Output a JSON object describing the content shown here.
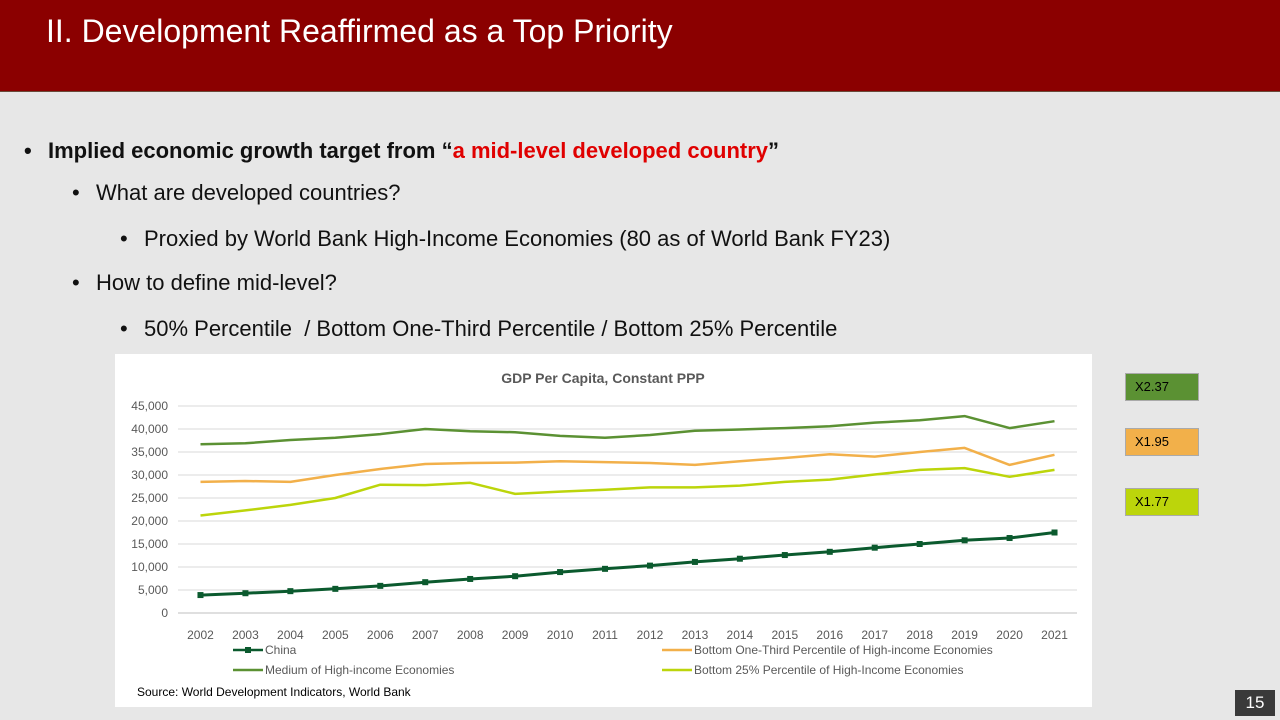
{
  "slide": {
    "title": "II. Development Reaffirmed as a Top Priority",
    "page_number": "15",
    "bullets": {
      "b1_prefix": "Implied economic growth target from “",
      "b1_highlight": "a mid-level developed country",
      "b1_suffix": "”",
      "b2": "What are developed countries?",
      "b3": "Proxied by World Bank High-Income Economies (80 as of World Bank FY23)",
      "b4": "How to define mid-level?",
      "b5": "50% Percentile  / Bottom One-Third Percentile / Bottom 25% Percentile"
    },
    "source": "Source: World Development Indicators, World Bank",
    "multipliers": [
      {
        "label": "X2.37",
        "color": "#5b9133"
      },
      {
        "label": "X1.95",
        "color": "#f2b04a"
      },
      {
        "label": "X1.77",
        "color": "#bcd50b"
      }
    ]
  },
  "chart_data": {
    "type": "line",
    "title": "GDP Per Capita, Constant PPP",
    "x": [
      "2002",
      "2003",
      "2004",
      "2005",
      "2006",
      "2007",
      "2008",
      "2009",
      "2010",
      "2011",
      "2012",
      "2013",
      "2014",
      "2015",
      "2016",
      "2017",
      "2018",
      "2019",
      "2020",
      "2021"
    ],
    "ylim": [
      0,
      45000
    ],
    "yticks": [
      0,
      5000,
      10000,
      15000,
      20000,
      25000,
      30000,
      35000,
      40000,
      45000
    ],
    "ytick_labels": [
      "0",
      "5,000",
      "10,000",
      "15,000",
      "20,000",
      "25,000",
      "30,000",
      "35,000",
      "40,000",
      "45,000"
    ],
    "grid": true,
    "legend_position": "bottom",
    "series": [
      {
        "name": "China",
        "color": "#0b5a2e",
        "markers": true,
        "values": [
          3900,
          4300,
          4750,
          5250,
          5900,
          6700,
          7400,
          8000,
          8900,
          9600,
          10300,
          11100,
          11800,
          12600,
          13300,
          14200,
          15000,
          15800,
          16300,
          17500
        ]
      },
      {
        "name": "Bottom One-Third Percentile of High-income Economies",
        "color": "#f2b04a",
        "markers": false,
        "values": [
          28500,
          28700,
          28500,
          30000,
          31300,
          32400,
          32600,
          32700,
          33000,
          32800,
          32600,
          32200,
          33000,
          33700,
          34500,
          34000,
          35000,
          35900,
          32200,
          34400
        ]
      },
      {
        "name": "Medium of High-income Economies",
        "color": "#5b9133",
        "markers": false,
        "values": [
          36700,
          36900,
          37600,
          38100,
          38900,
          40000,
          39500,
          39300,
          38500,
          38100,
          38700,
          39600,
          39900,
          40200,
          40600,
          41400,
          41900,
          42800,
          40200,
          41700
        ]
      },
      {
        "name": "Bottom 25% Percentile of High-Income Economies",
        "color": "#bcd50b",
        "markers": false,
        "values": [
          21200,
          22300,
          23500,
          25000,
          27900,
          27800,
          28300,
          25900,
          26400,
          26800,
          27300,
          27300,
          27700,
          28500,
          29000,
          30100,
          31100,
          31500,
          29600,
          31100
        ]
      }
    ]
  }
}
